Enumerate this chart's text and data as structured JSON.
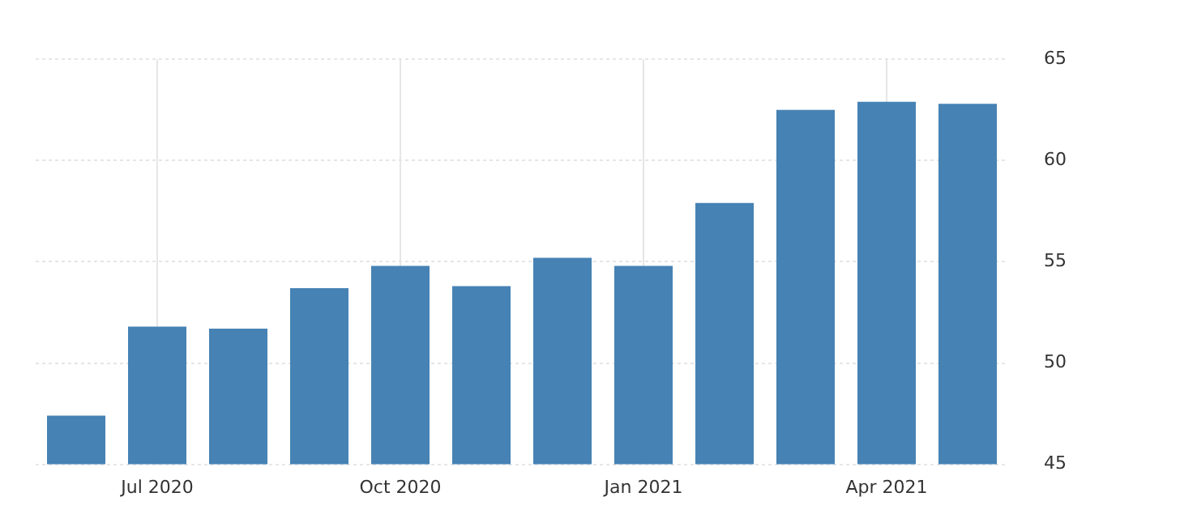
{
  "chart_data": {
    "type": "bar",
    "categories": [
      null,
      "Jul 2020",
      null,
      null,
      "Oct 2020",
      null,
      null,
      "Jan 2021",
      null,
      null,
      "Apr 2021",
      null
    ],
    "values": [
      47.4,
      51.8,
      51.7,
      53.7,
      54.8,
      53.8,
      55.2,
      54.8,
      57.9,
      62.5,
      62.9,
      62.8
    ],
    "color": "#4682b4",
    "ylim": [
      45,
      65
    ],
    "yticks": [
      45,
      50,
      55,
      60,
      65
    ],
    "grid": true,
    "legend": false
  }
}
